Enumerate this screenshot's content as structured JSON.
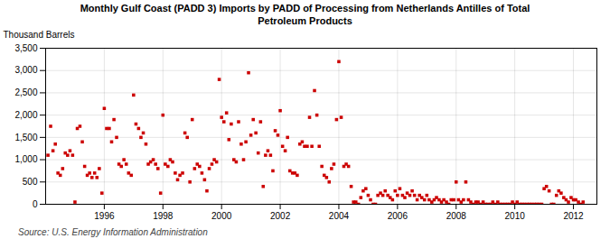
{
  "chart_data": {
    "type": "scatter",
    "title": "Monthly Gulf Coast (PADD 3) Imports by PADD of Processing from Netherlands Antilles of Total\nPetroleum Products",
    "caption": "Source: U.S. Energy Information Administration",
    "y_label": "Thousand Barrels",
    "color": "#cc0000",
    "marker": "square",
    "grid": true,
    "xlim": [
      1994.0,
      2012.8
    ],
    "xticks": [
      1996,
      1998,
      2000,
      2002,
      2004,
      2006,
      2008,
      2010,
      2012
    ],
    "ylim": [
      0,
      3500
    ],
    "yticks": [
      0,
      500,
      {
        "value": 1000,
        "label": "1,000"
      },
      {
        "value": 1500,
        "label": "1,500"
      },
      {
        "value": 2000,
        "label": "2,000"
      },
      {
        "value": 2500,
        "label": "2,500"
      },
      {
        "value": 3000,
        "label": "3,000"
      },
      {
        "value": 3500,
        "label": "3,500"
      }
    ],
    "x": [
      1994.08,
      1994.17,
      1994.25,
      1994.33,
      1994.42,
      1994.5,
      1994.58,
      1994.67,
      1994.75,
      1994.83,
      1994.92,
      1995.0,
      1995.08,
      1995.17,
      1995.25,
      1995.33,
      1995.42,
      1995.5,
      1995.58,
      1995.67,
      1995.75,
      1995.83,
      1995.92,
      1996.0,
      1996.08,
      1996.17,
      1996.25,
      1996.33,
      1996.42,
      1996.5,
      1996.58,
      1996.67,
      1996.75,
      1996.83,
      1996.92,
      1997.0,
      1997.08,
      1997.17,
      1997.25,
      1997.33,
      1997.42,
      1997.5,
      1997.58,
      1997.67,
      1997.75,
      1997.83,
      1997.92,
      1998.0,
      1998.08,
      1998.17,
      1998.25,
      1998.33,
      1998.42,
      1998.5,
      1998.58,
      1998.67,
      1998.75,
      1998.83,
      1998.92,
      1999.0,
      1999.08,
      1999.17,
      1999.25,
      1999.33,
      1999.42,
      1999.5,
      1999.58,
      1999.67,
      1999.75,
      1999.83,
      1999.92,
      2000.0,
      2000.08,
      2000.17,
      2000.25,
      2000.33,
      2000.42,
      2000.5,
      2000.58,
      2000.67,
      2000.75,
      2000.83,
      2000.92,
      2001.0,
      2001.08,
      2001.17,
      2001.25,
      2001.33,
      2001.42,
      2001.5,
      2001.58,
      2001.67,
      2001.75,
      2001.83,
      2001.92,
      2002.0,
      2002.08,
      2002.17,
      2002.25,
      2002.33,
      2002.42,
      2002.5,
      2002.58,
      2002.67,
      2002.75,
      2002.83,
      2002.92,
      2003.0,
      2003.08,
      2003.17,
      2003.25,
      2003.33,
      2003.42,
      2003.5,
      2003.58,
      2003.67,
      2003.75,
      2003.83,
      2003.92,
      2004.0,
      2004.08,
      2004.17,
      2004.25,
      2004.33,
      2004.42,
      2004.5,
      2004.58,
      2004.67,
      2004.75,
      2004.83,
      2004.92,
      2005.0,
      2005.08,
      2005.17,
      2005.25,
      2005.33,
      2005.42,
      2005.5,
      2005.58,
      2005.67,
      2005.75,
      2005.83,
      2005.92,
      2006.0,
      2006.08,
      2006.17,
      2006.25,
      2006.33,
      2006.42,
      2006.5,
      2006.58,
      2006.67,
      2006.75,
      2006.83,
      2006.92,
      2007.0,
      2007.08,
      2007.17,
      2007.25,
      2007.33,
      2007.42,
      2007.5,
      2007.58,
      2007.67,
      2007.75,
      2007.83,
      2007.92,
      2008.0,
      2008.08,
      2008.17,
      2008.25,
      2008.33,
      2008.42,
      2008.5,
      2008.58,
      2008.67,
      2008.75,
      2008.83,
      2008.92,
      2009.0,
      2009.08,
      2009.17,
      2009.25,
      2009.33,
      2009.42,
      2009.5,
      2009.58,
      2009.67,
      2009.75,
      2009.83,
      2009.92,
      2010.0,
      2010.08,
      2010.17,
      2010.25,
      2010.33,
      2010.42,
      2010.5,
      2010.58,
      2010.67,
      2010.75,
      2010.83,
      2010.92,
      2011.0,
      2011.08,
      2011.17,
      2011.25,
      2011.33,
      2011.42,
      2011.5,
      2011.58,
      2011.67,
      2011.75,
      2011.83,
      2011.92,
      2012.0,
      2012.08,
      2012.17,
      2012.25,
      2012.33
    ],
    "values": [
      1100,
      1750,
      1200,
      1350,
      700,
      650,
      800,
      1150,
      1100,
      1200,
      1100,
      50,
      1700,
      1750,
      1400,
      850,
      650,
      700,
      600,
      700,
      600,
      800,
      250,
      2150,
      1700,
      1700,
      1400,
      1900,
      1500,
      900,
      850,
      1000,
      900,
      700,
      650,
      2450,
      1800,
      1700,
      1500,
      1600,
      1350,
      900,
      950,
      1000,
      900,
      800,
      250,
      2000,
      900,
      850,
      1000,
      950,
      700,
      550,
      650,
      700,
      1600,
      1500,
      500,
      1900,
      800,
      900,
      850,
      700,
      550,
      300,
      800,
      900,
      1000,
      950,
      2800,
      1950,
      1850,
      2050,
      1450,
      1800,
      1000,
      950,
      1850,
      1350,
      1000,
      1400,
      2950,
      1550,
      1900,
      1600,
      1150,
      1850,
      400,
      1100,
      1200,
      1100,
      750,
      1650,
      1550,
      2100,
      1300,
      1200,
      1500,
      750,
      700,
      700,
      650,
      1350,
      1400,
      1300,
      1300,
      1950,
      1300,
      2550,
      2000,
      1300,
      850,
      650,
      600,
      500,
      800,
      900,
      1900,
      3200,
      1950,
      850,
      900,
      850,
      400,
      50,
      50,
      0,
      150,
      300,
      350,
      200,
      100,
      0,
      0,
      200,
      250,
      200,
      300,
      200,
      150,
      100,
      300,
      200,
      350,
      200,
      150,
      250,
      200,
      300,
      200,
      100,
      200,
      150,
      100,
      200,
      100,
      50,
      100,
      150,
      100,
      50,
      100,
      50,
      0,
      100,
      100,
      500,
      100,
      50,
      100,
      500,
      100,
      50,
      0,
      50,
      50,
      0,
      50,
      0,
      0,
      0,
      50,
      0,
      50,
      0,
      0,
      0,
      0,
      0,
      50,
      0,
      50,
      0,
      0,
      0,
      0,
      0,
      0,
      0,
      0,
      0,
      0,
      350,
      400,
      300,
      0,
      0,
      200,
      300,
      250,
      150,
      100,
      50,
      150,
      100,
      100,
      50,
      0,
      50
    ]
  }
}
